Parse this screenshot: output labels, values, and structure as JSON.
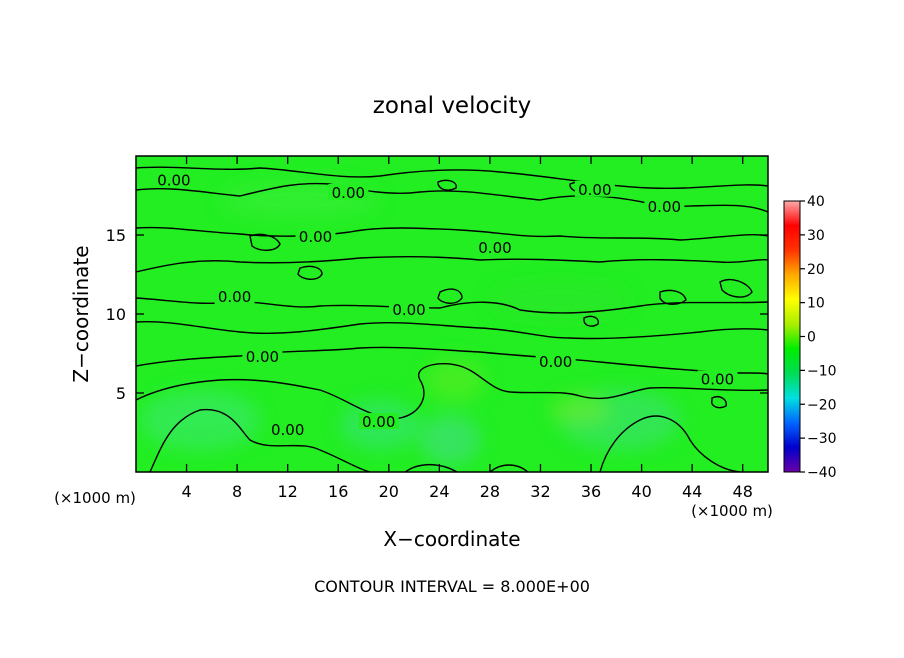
{
  "chart_data": {
    "type": "heatmap",
    "title": "zonal velocity",
    "xlabel": "X−coordinate",
    "ylabel": "Z−coordinate",
    "x_unit_left": "(×1000 m)",
    "x_unit_right": "(×1000 m)",
    "footer": "CONTOUR INTERVAL = 8.000E+00",
    "xlim": [
      0,
      50
    ],
    "ylim": [
      0,
      20
    ],
    "x_ticks": [
      4,
      8,
      12,
      16,
      20,
      24,
      28,
      32,
      36,
      40,
      44,
      48
    ],
    "x_tick_labels": [
      "4",
      "8",
      "12",
      "16",
      "20",
      "24",
      "28",
      "32",
      "36",
      "40",
      "44",
      "48"
    ],
    "y_ticks": [
      5,
      10,
      15
    ],
    "y_tick_labels": [
      "5",
      "10",
      "15"
    ],
    "colorbar": {
      "min": -40,
      "max": 40,
      "ticks": [
        40,
        30,
        20,
        10,
        0,
        -10,
        -20,
        -30,
        -40
      ],
      "tick_labels": [
        "40",
        "30",
        "20",
        "10",
        "0",
        "−10",
        "−20",
        "−30",
        "−40"
      ],
      "colors": [
        "#6a00a8",
        "#0000cc",
        "#0066ff",
        "#00e0e0",
        "#00dd55",
        "#00ee00",
        "#aaee00",
        "#ffff00",
        "#ffaa00",
        "#ff3300",
        "#ff0000",
        "#ffaaaa"
      ]
    },
    "background_value": 1,
    "contour_interval": 8.0,
    "contour_labels": [
      {
        "text": "0.00",
        "x": 3.0,
        "y": 18.4
      },
      {
        "text": "0.00",
        "x": 16.8,
        "y": 17.6
      },
      {
        "text": "0.00",
        "x": 36.3,
        "y": 17.8
      },
      {
        "text": "0.00",
        "x": 41.8,
        "y": 16.7
      },
      {
        "text": "0.00",
        "x": 14.2,
        "y": 14.8
      },
      {
        "text": "0.00",
        "x": 28.4,
        "y": 14.1
      },
      {
        "text": "0.00",
        "x": 7.8,
        "y": 11.0
      },
      {
        "text": "0.00",
        "x": 21.6,
        "y": 10.2
      },
      {
        "text": "0.00",
        "x": 10.0,
        "y": 7.2
      },
      {
        "text": "0.00",
        "x": 33.2,
        "y": 6.9
      },
      {
        "text": "0.00",
        "x": 46.0,
        "y": 5.8
      },
      {
        "text": "0.00",
        "x": 19.2,
        "y": 3.1
      },
      {
        "text": "0.00",
        "x": 12.0,
        "y": 2.6
      }
    ]
  }
}
